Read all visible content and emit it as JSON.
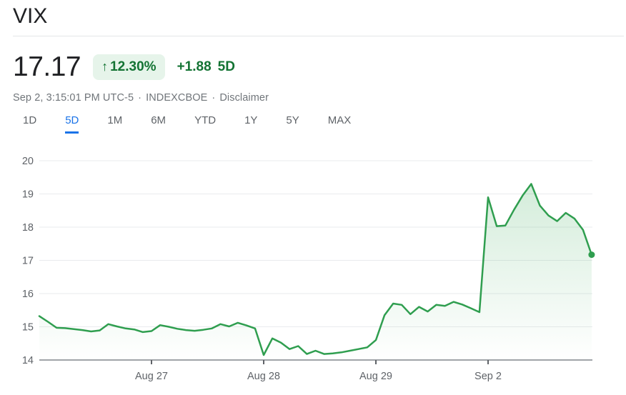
{
  "header": {
    "title": "VIX"
  },
  "quote": {
    "price": "17.17",
    "arrow": "↑",
    "change_percent": "12.30%",
    "change_absolute": "+1.88",
    "change_period": "5D",
    "timestamp": "Sep 2, 3:15:01 PM UTC-5",
    "separator": "·",
    "exchange": "INDEXCBOE",
    "disclaimer_label": "Disclaimer"
  },
  "tabs": {
    "items": [
      {
        "label": "1D",
        "active": false
      },
      {
        "label": "5D",
        "active": true
      },
      {
        "label": "1M",
        "active": false
      },
      {
        "label": "6M",
        "active": false
      },
      {
        "label": "YTD",
        "active": false
      },
      {
        "label": "1Y",
        "active": false
      },
      {
        "label": "5Y",
        "active": false
      },
      {
        "label": "MAX",
        "active": false
      }
    ]
  },
  "colors": {
    "line_green": "#2f9e4f",
    "fill_green": "#34a853",
    "text_green": "#137333",
    "badge_bg": "#e6f4ea",
    "accent_blue": "#1a73e8",
    "grid": "#e9ebee",
    "axis": "#80868b",
    "label_gray": "#5f6368"
  },
  "chart_data": {
    "type": "area",
    "title": "VIX 5-day intraday price",
    "ylabel": "",
    "xlabel": "",
    "ylim": [
      14,
      20
    ],
    "y_ticks": [
      14,
      15,
      16,
      17,
      18,
      19,
      20
    ],
    "x_tick_labels": [
      "Aug 27",
      "Aug 28",
      "Aug 29",
      "Sep 2"
    ],
    "x_tick_indices": [
      13,
      26,
      39,
      52
    ],
    "points_per_day": 13,
    "grid": true,
    "legend": false,
    "last_price": 17.17,
    "values": [
      15.32,
      15.15,
      14.97,
      14.96,
      14.93,
      14.9,
      14.86,
      14.89,
      15.08,
      15.01,
      14.95,
      14.92,
      14.84,
      14.87,
      15.05,
      15.0,
      14.94,
      14.9,
      14.88,
      14.91,
      14.95,
      15.08,
      15.01,
      15.12,
      15.04,
      14.95,
      14.15,
      14.65,
      14.52,
      14.33,
      14.42,
      14.18,
      14.28,
      14.18,
      14.2,
      14.23,
      14.28,
      14.33,
      14.38,
      14.6,
      15.35,
      15.7,
      15.66,
      15.38,
      15.6,
      15.46,
      15.66,
      15.63,
      15.75,
      15.67,
      15.56,
      15.44,
      18.9,
      18.03,
      18.05,
      18.52,
      18.95,
      19.3,
      18.65,
      18.35,
      18.18,
      18.43,
      18.26,
      17.92,
      17.17
    ]
  }
}
